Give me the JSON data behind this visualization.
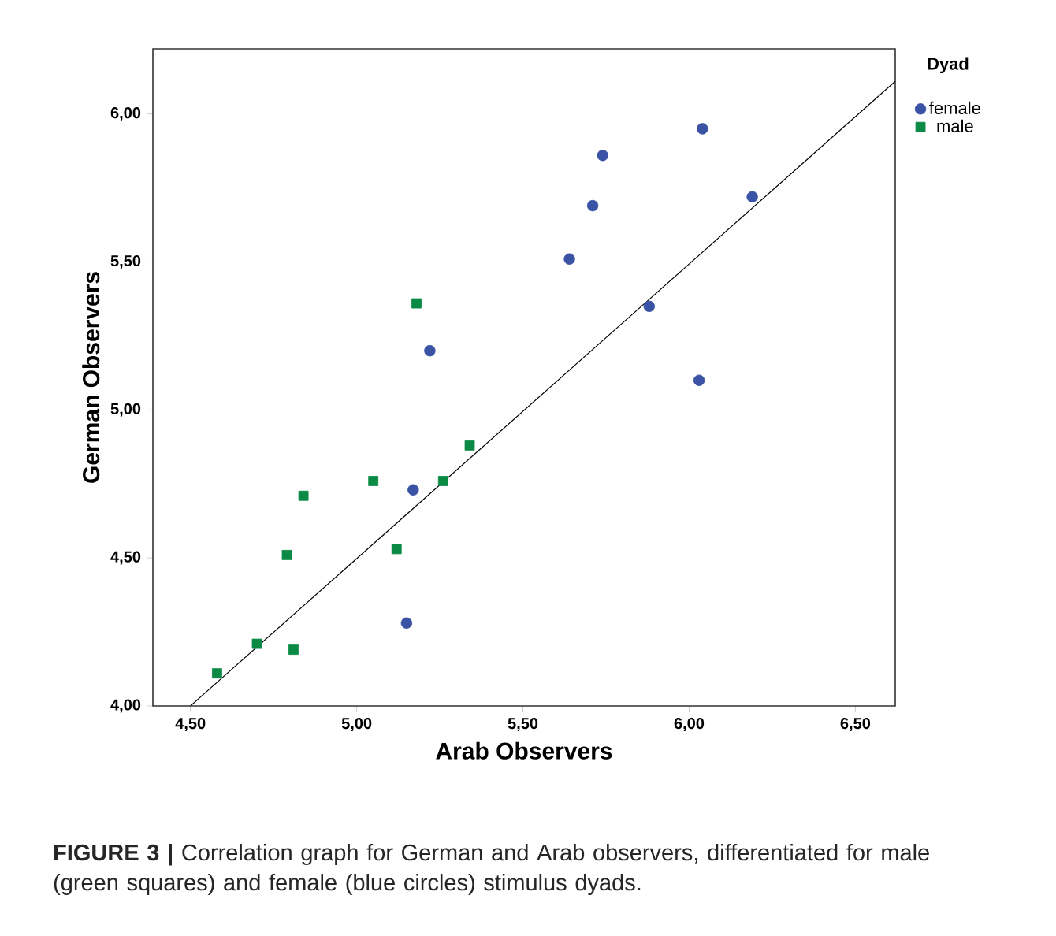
{
  "chart_data": {
    "type": "scatter",
    "xlabel": "Arab Observers",
    "ylabel": "German Observers",
    "legend_title": "Dyad",
    "legend": "right",
    "grid": false,
    "xlim": [
      4.387,
      6.62
    ],
    "ylim": [
      4.0,
      6.22
    ],
    "xticks": [
      {
        "value": 4.5,
        "label": "4,50"
      },
      {
        "value": 5.0,
        "label": "5,00"
      },
      {
        "value": 5.5,
        "label": "5,50"
      },
      {
        "value": 6.0,
        "label": "6,00"
      },
      {
        "value": 6.5,
        "label": "6,50"
      }
    ],
    "yticks": [
      {
        "value": 4.0,
        "label": "4,00"
      },
      {
        "value": 4.5,
        "label": "4,50"
      },
      {
        "value": 5.0,
        "label": "5,00"
      },
      {
        "value": 5.5,
        "label": "5,50"
      },
      {
        "value": 6.0,
        "label": "6,00"
      }
    ],
    "series": [
      {
        "name": "female",
        "color": "#3a53a4",
        "marker": "circle",
        "x": [
          6.04,
          5.74,
          5.71,
          5.64,
          6.19,
          5.88,
          5.22,
          6.03,
          5.17,
          5.15
        ],
        "values": [
          5.95,
          5.86,
          5.69,
          5.51,
          5.72,
          5.35,
          5.2,
          5.1,
          4.73,
          4.28
        ]
      },
      {
        "name": "male",
        "color": "#0a8a45",
        "marker": "square",
        "x": [
          5.18,
          4.58,
          4.7,
          4.81,
          4.79,
          4.84,
          5.05,
          5.12,
          5.26,
          5.34
        ],
        "values": [
          5.36,
          4.11,
          4.21,
          4.19,
          4.51,
          4.71,
          4.76,
          4.53,
          4.76,
          4.88
        ]
      },
      {
        "type": "line",
        "color": "#000000",
        "marker": "none",
        "x": [
          4.5,
          6.62
        ],
        "values": [
          4.0,
          6.11
        ]
      }
    ],
    "annotations": [
      "**FIGURE 3 |** Correlation graph for German and Arab observers, differentiated for male (green squares) and female (blue circles) stimulus dyads."
    ]
  }
}
